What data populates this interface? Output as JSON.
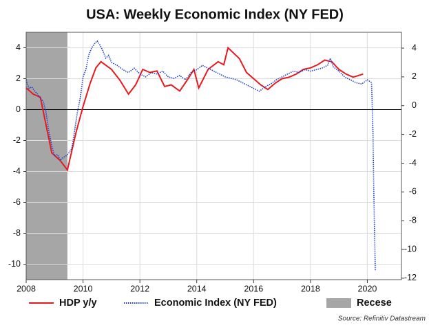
{
  "chart_data": {
    "type": "line",
    "title": "USA: Weekly Economic Index (NY FED)",
    "source": "Source: Refinitiv Datastream",
    "xlim": [
      2008,
      2021.2
    ],
    "xticks": [
      2008,
      2010,
      2012,
      2014,
      2016,
      2018,
      2020
    ],
    "ylim": [
      -11,
      5
    ],
    "yticks": [
      -10,
      -8,
      -6,
      -4,
      -2,
      0,
      2,
      4
    ],
    "y2lim": [
      -12.1,
      5.1
    ],
    "y2ticks": [
      -12,
      -10,
      -8,
      -6,
      -4,
      -2,
      0,
      2,
      4
    ],
    "grid": true,
    "recession": {
      "name": "Recese",
      "color": "#a6a6a6",
      "start": 2008,
      "end": 2009.45
    },
    "series": [
      {
        "name": "HDP y/y",
        "color": "#e8191c",
        "axis": "y",
        "x": [
          2008.0,
          2008.25,
          2008.5,
          2008.9,
          2009.2,
          2009.45,
          2009.75,
          2010.0,
          2010.25,
          2010.45,
          2010.63,
          2011.0,
          2011.3,
          2011.6,
          2011.85,
          2012.1,
          2012.35,
          2012.6,
          2012.87,
          2013.1,
          2013.4,
          2013.7,
          2013.9,
          2014.07,
          2014.4,
          2014.75,
          2014.95,
          2015.1,
          2015.5,
          2015.75,
          2016.0,
          2016.25,
          2016.5,
          2016.75,
          2017.0,
          2017.25,
          2017.5,
          2017.75,
          2018.0,
          2018.25,
          2018.5,
          2018.75,
          2019.0,
          2019.25,
          2019.5,
          2019.85
        ],
        "values": [
          1.4,
          1.0,
          0.8,
          -2.8,
          -3.3,
          -3.9,
          -1.5,
          0.2,
          1.7,
          2.7,
          3.1,
          2.6,
          1.9,
          1.0,
          1.6,
          2.6,
          2.4,
          2.5,
          1.5,
          1.6,
          1.2,
          2.0,
          2.6,
          1.4,
          2.6,
          3.1,
          2.9,
          4.0,
          3.3,
          2.4,
          2.0,
          1.6,
          1.3,
          1.7,
          2.0,
          2.1,
          2.3,
          2.6,
          2.7,
          2.9,
          3.2,
          3.1,
          2.6,
          2.3,
          2.1,
          2.3
        ]
      },
      {
        "name": "Economic Index (NY FED)",
        "color": "#1f3fd1",
        "axis": "y2",
        "x": [
          2008.0,
          2008.1,
          2008.2,
          2008.3,
          2008.4,
          2008.5,
          2008.6,
          2008.7,
          2008.8,
          2008.9,
          2009.0,
          2009.1,
          2009.2,
          2009.3,
          2009.4,
          2009.5,
          2009.6,
          2009.7,
          2009.8,
          2009.9,
          2010.0,
          2010.1,
          2010.2,
          2010.3,
          2010.4,
          2010.5,
          2010.6,
          2010.7,
          2010.8,
          2010.9,
          2011.0,
          2011.2,
          2011.4,
          2011.6,
          2011.8,
          2012.0,
          2012.2,
          2012.4,
          2012.6,
          2012.8,
          2013.0,
          2013.2,
          2013.4,
          2013.6,
          2013.8,
          2014.0,
          2014.2,
          2014.4,
          2014.6,
          2014.8,
          2015.0,
          2015.2,
          2015.4,
          2015.6,
          2015.8,
          2016.0,
          2016.2,
          2016.4,
          2016.6,
          2016.8,
          2017.0,
          2017.2,
          2017.4,
          2017.6,
          2017.8,
          2018.0,
          2018.2,
          2018.4,
          2018.6,
          2018.7,
          2018.8,
          2019.0,
          2019.2,
          2019.4,
          2019.6,
          2019.8,
          2020.0,
          2020.15,
          2020.2,
          2020.22,
          2020.25,
          2020.28
        ],
        "values": [
          1.8,
          1.2,
          1.3,
          1.0,
          0.8,
          0.5,
          0.3,
          -0.5,
          -1.8,
          -2.8,
          -3.5,
          -3.4,
          -3.8,
          -3.6,
          -3.5,
          -3.3,
          -3.0,
          -1.8,
          -0.5,
          0.5,
          2.0,
          2.5,
          3.5,
          4.0,
          4.3,
          4.5,
          4.2,
          3.8,
          3.3,
          3.5,
          3.0,
          2.8,
          2.5,
          2.3,
          2.6,
          2.2,
          2.0,
          2.3,
          2.2,
          2.4,
          2.0,
          1.9,
          2.1,
          1.8,
          2.3,
          2.5,
          2.8,
          2.6,
          2.4,
          2.2,
          2.0,
          1.9,
          1.8,
          1.6,
          1.4,
          1.2,
          1.0,
          1.3,
          1.5,
          1.8,
          2.0,
          2.2,
          2.4,
          2.3,
          2.5,
          2.4,
          2.5,
          2.6,
          2.8,
          3.3,
          2.7,
          2.4,
          2.0,
          1.8,
          1.6,
          1.5,
          1.8,
          1.6,
          -2.0,
          -5.0,
          -8.5,
          -11.5
        ]
      }
    ]
  }
}
